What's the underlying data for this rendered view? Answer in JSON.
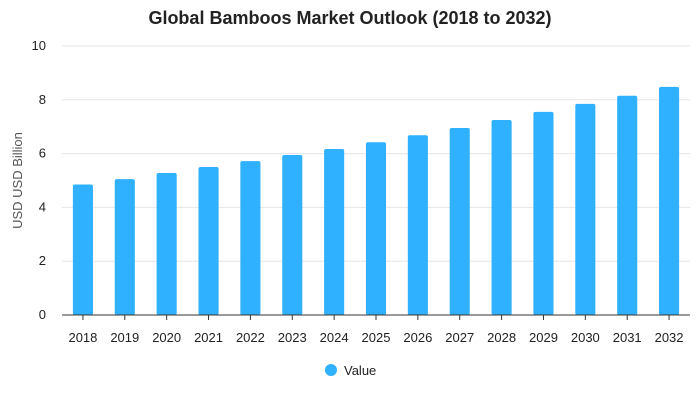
{
  "chart_data": {
    "type": "bar",
    "title": "Global Bamboos Market Outlook (2018 to 2032)",
    "xlabel": "",
    "ylabel": "USD USD Billion",
    "categories": [
      "2018",
      "2019",
      "2020",
      "2021",
      "2022",
      "2023",
      "2024",
      "2025",
      "2026",
      "2027",
      "2028",
      "2029",
      "2030",
      "2031",
      "2032"
    ],
    "series": [
      {
        "name": "Value",
        "color": "#2fb1ff",
        "values": [
          4.85,
          5.05,
          5.28,
          5.5,
          5.72,
          5.95,
          6.17,
          6.42,
          6.68,
          6.95,
          7.25,
          7.55,
          7.85,
          8.15,
          8.48
        ]
      }
    ],
    "ylim": [
      0,
      10
    ],
    "yticks": [
      0,
      2,
      4,
      6,
      8,
      10
    ],
    "grid": true,
    "legend_position": "bottom"
  }
}
